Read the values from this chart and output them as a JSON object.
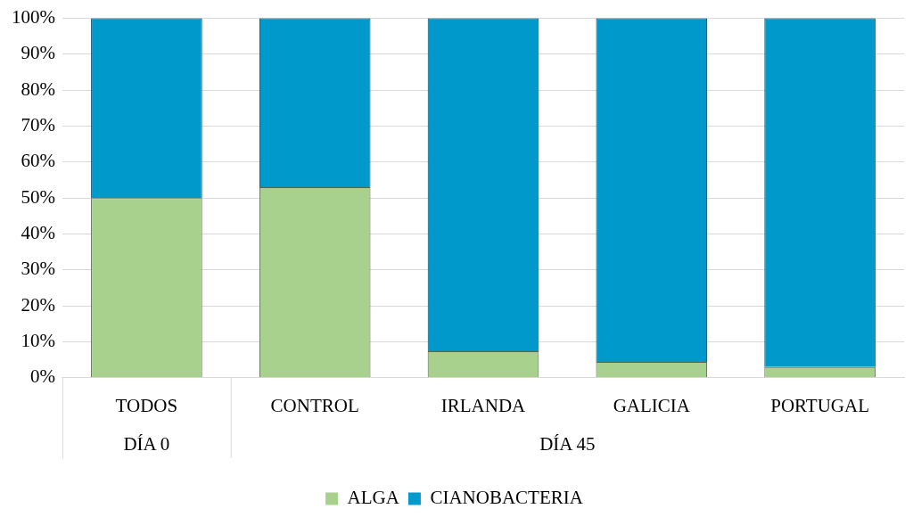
{
  "chart_data": {
    "type": "bar",
    "stacked": true,
    "categories": [
      "TODOS",
      "CONTROL",
      "IRLANDA",
      "GALICIA",
      "PORTUGAL"
    ],
    "series": [
      {
        "name": "ALGA",
        "color": "#a9d18e",
        "values": [
          50,
          53,
          7.4,
          4.4,
          3
        ]
      },
      {
        "name": "CIANOBACTERIA",
        "color": "#0099cc",
        "values": [
          50,
          47,
          92.6,
          95.6,
          97
        ]
      }
    ],
    "ylim": [
      0,
      100
    ],
    "yticks": [
      {
        "value": 0,
        "label": "0%"
      },
      {
        "value": 10,
        "label": "10%"
      },
      {
        "value": 20,
        "label": "20%"
      },
      {
        "value": 30,
        "label": "30%"
      },
      {
        "value": 40,
        "label": "40%"
      },
      {
        "value": 50,
        "label": "50%"
      },
      {
        "value": 60,
        "label": "60%"
      },
      {
        "value": 70,
        "label": "70%"
      },
      {
        "value": 80,
        "label": "80%"
      },
      {
        "value": 90,
        "label": "90%"
      },
      {
        "value": 100,
        "label": "100%"
      }
    ],
    "grid": "y",
    "legend": "bottom",
    "annotations": [
      "DÍA 0",
      "DÍA 45"
    ]
  }
}
